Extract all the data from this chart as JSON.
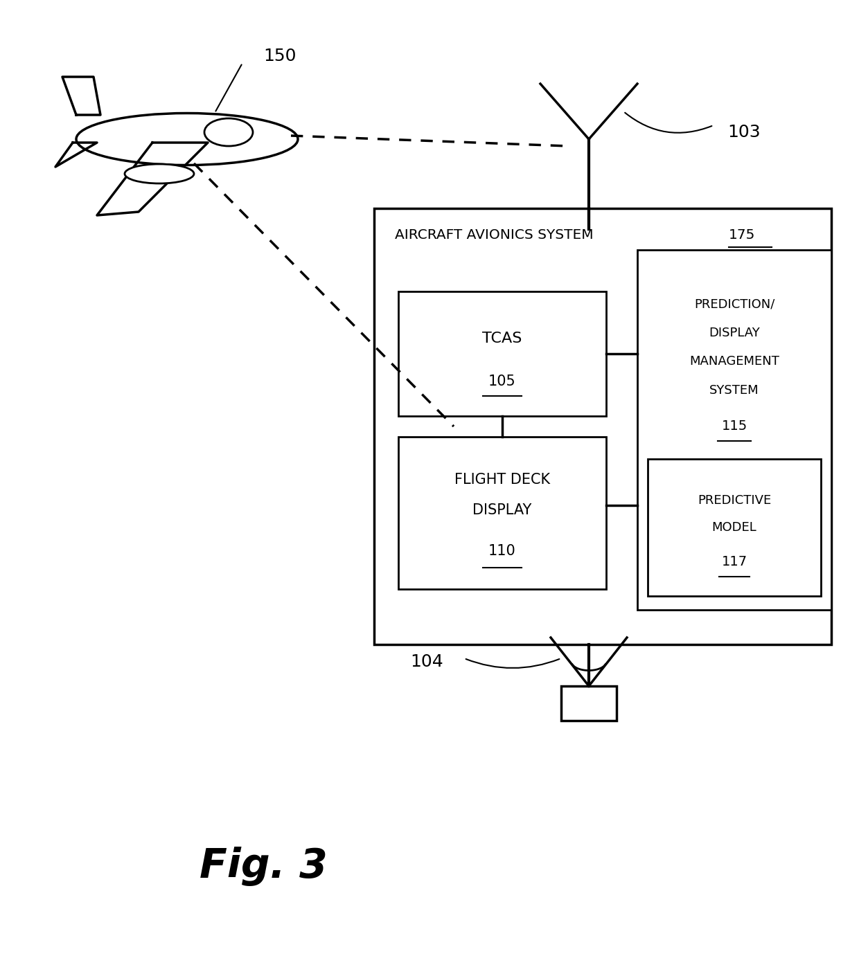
{
  "bg_color": "#ffffff",
  "line_color": "#000000",
  "fig_label": "Fig. 3",
  "aircraft_label": "150",
  "antenna_top_label": "103",
  "antenna_bottom_label": "104",
  "avionics_box_label": "AIRCRAFT AVIONICS SYSTEM",
  "avionics_box_number": "175",
  "tcas_label": "TCAS",
  "tcas_number": "105",
  "fdd_label1": "FLIGHT DECK",
  "fdd_label2": "DISPLAY",
  "fdd_number": "110",
  "pred_sys_label1": "PREDICTION/",
  "pred_sys_label2": "DISPLAY",
  "pred_sys_label3": "MANAGEMENT",
  "pred_sys_label4": "SYSTEM",
  "pred_sys_number": "115",
  "pred_model_label1": "PREDICTIVE",
  "pred_model_label2": "MODEL",
  "pred_model_number": "117"
}
